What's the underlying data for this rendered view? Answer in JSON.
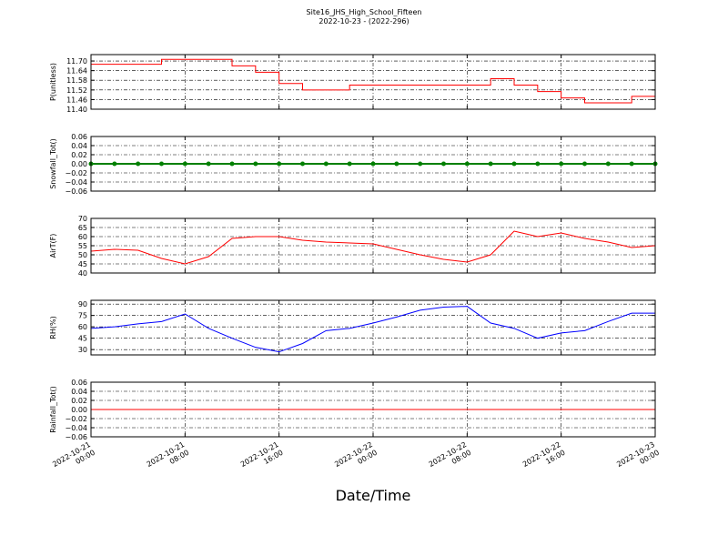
{
  "figure": {
    "title": "Site16_JHS_High_School_Fifteen",
    "subtitle": "2022-10-23 - (2022-296)",
    "xlabel": "Date/Time"
  },
  "chart_data": [
    {
      "type": "line",
      "ylabel": "P(unitless)",
      "drawstyle": "steps-post",
      "grid": true,
      "xlim": [
        "2022-10-21 00:00",
        "2022-10-23 00:00"
      ],
      "xticks": [
        "2022-10-21 00:00",
        "2022-10-21 08:00",
        "2022-10-21 16:00",
        "2022-10-22 00:00",
        "2022-10-22 08:00",
        "2022-10-22 16:00",
        "2022-10-23 00:00"
      ],
      "ylim": [
        11.4,
        11.74
      ],
      "yticks": [
        {
          "value": 11.4,
          "label": "11.40"
        },
        {
          "value": 11.46,
          "label": "11.46"
        },
        {
          "value": 11.52,
          "label": "11.52"
        },
        {
          "value": 11.58,
          "label": "11.58"
        },
        {
          "value": 11.64,
          "label": "11.64"
        },
        {
          "value": 11.7,
          "label": "11.70"
        }
      ],
      "x": [
        "2022-10-21 00:00",
        "2022-10-21 02:00",
        "2022-10-21 04:00",
        "2022-10-21 06:00",
        "2022-10-21 08:00",
        "2022-10-21 10:00",
        "2022-10-21 12:00",
        "2022-10-21 14:00",
        "2022-10-21 16:00",
        "2022-10-21 18:00",
        "2022-10-21 20:00",
        "2022-10-21 22:00",
        "2022-10-22 00:00",
        "2022-10-22 02:00",
        "2022-10-22 04:00",
        "2022-10-22 06:00",
        "2022-10-22 08:00",
        "2022-10-22 10:00",
        "2022-10-22 12:00",
        "2022-10-22 14:00",
        "2022-10-22 16:00",
        "2022-10-22 18:00",
        "2022-10-22 20:00",
        "2022-10-22 22:00",
        "2022-10-23 00:00"
      ],
      "series": [
        {
          "color": "#ff0000",
          "values": [
            11.68,
            11.68,
            11.68,
            11.71,
            11.71,
            11.71,
            11.67,
            11.63,
            11.56,
            11.52,
            11.52,
            11.55,
            11.55,
            11.55,
            11.55,
            11.55,
            11.55,
            11.59,
            11.55,
            11.51,
            11.47,
            11.44,
            11.44,
            11.48,
            11.48
          ]
        }
      ]
    },
    {
      "type": "line",
      "ylabel": "Snowfall_Tot()",
      "grid": true,
      "markers": true,
      "xlim": [
        "2022-10-21 00:00",
        "2022-10-23 00:00"
      ],
      "xticks": [
        "2022-10-21 00:00",
        "2022-10-21 08:00",
        "2022-10-21 16:00",
        "2022-10-22 00:00",
        "2022-10-22 08:00",
        "2022-10-22 16:00",
        "2022-10-23 00:00"
      ],
      "ylim": [
        -0.06,
        0.06
      ],
      "yticks": [
        {
          "value": -0.06,
          "label": "−0.06"
        },
        {
          "value": -0.04,
          "label": "−0.04"
        },
        {
          "value": -0.02,
          "label": "−0.02"
        },
        {
          "value": 0,
          "label": "0.00"
        },
        {
          "value": 0.02,
          "label": "0.02"
        },
        {
          "value": 0.04,
          "label": "0.04"
        },
        {
          "value": 0.06,
          "label": "0.06"
        }
      ],
      "x": [
        "2022-10-21 00:00",
        "2022-10-21 02:00",
        "2022-10-21 04:00",
        "2022-10-21 06:00",
        "2022-10-21 08:00",
        "2022-10-21 10:00",
        "2022-10-21 12:00",
        "2022-10-21 14:00",
        "2022-10-21 16:00",
        "2022-10-21 18:00",
        "2022-10-21 20:00",
        "2022-10-21 22:00",
        "2022-10-22 00:00",
        "2022-10-22 02:00",
        "2022-10-22 04:00",
        "2022-10-22 06:00",
        "2022-10-22 08:00",
        "2022-10-22 10:00",
        "2022-10-22 12:00",
        "2022-10-22 14:00",
        "2022-10-22 16:00",
        "2022-10-22 18:00",
        "2022-10-22 20:00",
        "2022-10-22 22:00",
        "2022-10-23 00:00"
      ],
      "series": [
        {
          "color": "#008000",
          "values": [
            0,
            0,
            0,
            0,
            0,
            0,
            0,
            0,
            0,
            0,
            0,
            0,
            0,
            0,
            0,
            0,
            0,
            0,
            0,
            0,
            0,
            0,
            0,
            0,
            0
          ]
        }
      ]
    },
    {
      "type": "line",
      "ylabel": "AirT(F)",
      "grid": true,
      "xlim": [
        "2022-10-21 00:00",
        "2022-10-23 00:00"
      ],
      "xticks": [
        "2022-10-21 00:00",
        "2022-10-21 08:00",
        "2022-10-21 16:00",
        "2022-10-22 00:00",
        "2022-10-22 08:00",
        "2022-10-22 16:00",
        "2022-10-23 00:00"
      ],
      "ylim": [
        40,
        70
      ],
      "yticks": [
        40,
        45,
        50,
        55,
        60,
        65,
        70
      ],
      "x": [
        "2022-10-21 00:00",
        "2022-10-21 02:00",
        "2022-10-21 04:00",
        "2022-10-21 06:00",
        "2022-10-21 08:00",
        "2022-10-21 10:00",
        "2022-10-21 12:00",
        "2022-10-21 14:00",
        "2022-10-21 16:00",
        "2022-10-21 18:00",
        "2022-10-21 20:00",
        "2022-10-21 22:00",
        "2022-10-22 00:00",
        "2022-10-22 02:00",
        "2022-10-22 04:00",
        "2022-10-22 06:00",
        "2022-10-22 08:00",
        "2022-10-22 10:00",
        "2022-10-22 12:00",
        "2022-10-22 14:00",
        "2022-10-22 16:00",
        "2022-10-22 18:00",
        "2022-10-22 20:00",
        "2022-10-22 22:00",
        "2022-10-23 00:00"
      ],
      "series": [
        {
          "color": "#ff0000",
          "values": [
            52,
            53,
            52.5,
            48,
            45,
            49,
            59,
            60,
            60,
            58,
            57,
            56.5,
            56,
            53,
            50,
            47.5,
            46,
            50,
            63,
            60,
            62,
            59,
            57,
            54,
            55
          ]
        }
      ]
    },
    {
      "type": "line",
      "ylabel": "RH(%)",
      "grid": true,
      "xlim": [
        "2022-10-21 00:00",
        "2022-10-23 00:00"
      ],
      "xticks": [
        "2022-10-21 00:00",
        "2022-10-21 08:00",
        "2022-10-21 16:00",
        "2022-10-22 00:00",
        "2022-10-22 08:00",
        "2022-10-22 16:00",
        "2022-10-23 00:00"
      ],
      "ylim": [
        23,
        95
      ],
      "yticks": [
        30,
        45,
        60,
        75,
        90
      ],
      "x": [
        "2022-10-21 00:00",
        "2022-10-21 02:00",
        "2022-10-21 04:00",
        "2022-10-21 06:00",
        "2022-10-21 08:00",
        "2022-10-21 10:00",
        "2022-10-21 12:00",
        "2022-10-21 14:00",
        "2022-10-21 16:00",
        "2022-10-21 18:00",
        "2022-10-21 20:00",
        "2022-10-21 22:00",
        "2022-10-22 00:00",
        "2022-10-22 02:00",
        "2022-10-22 04:00",
        "2022-10-22 06:00",
        "2022-10-22 08:00",
        "2022-10-22 10:00",
        "2022-10-22 12:00",
        "2022-10-22 14:00",
        "2022-10-22 16:00",
        "2022-10-22 18:00",
        "2022-10-22 20:00",
        "2022-10-22 22:00",
        "2022-10-23 00:00"
      ],
      "series": [
        {
          "color": "#0000ff",
          "values": [
            58,
            60,
            64,
            67,
            77,
            58,
            45,
            33,
            27,
            38,
            55,
            58,
            65,
            73,
            82,
            86,
            87,
            65,
            58,
            45,
            52,
            55,
            67,
            78,
            78
          ]
        }
      ]
    },
    {
      "type": "line",
      "ylabel": "Rainfall_Tot()",
      "grid": true,
      "xlim": [
        "2022-10-21 00:00",
        "2022-10-23 00:00"
      ],
      "xticks": [
        {
          "value": "2022-10-21 00:00",
          "label": [
            "2022-10-21",
            "00:00"
          ]
        },
        {
          "value": "2022-10-21 08:00",
          "label": [
            "2022-10-21",
            "08:00"
          ]
        },
        {
          "value": "2022-10-21 16:00",
          "label": [
            "2022-10-21",
            "16:00"
          ]
        },
        {
          "value": "2022-10-22 00:00",
          "label": [
            "2022-10-22",
            "00:00"
          ]
        },
        {
          "value": "2022-10-22 08:00",
          "label": [
            "2022-10-22",
            "08:00"
          ]
        },
        {
          "value": "2022-10-22 16:00",
          "label": [
            "2022-10-22",
            "16:00"
          ]
        },
        {
          "value": "2022-10-23 00:00",
          "label": [
            "2022-10-23",
            "00:00"
          ]
        }
      ],
      "ylim": [
        -0.06,
        0.06
      ],
      "yticks": [
        {
          "value": -0.06,
          "label": "−0.06"
        },
        {
          "value": -0.04,
          "label": "−0.04"
        },
        {
          "value": -0.02,
          "label": "−0.02"
        },
        {
          "value": 0,
          "label": "0.00"
        },
        {
          "value": 0.02,
          "label": "0.02"
        },
        {
          "value": 0.04,
          "label": "0.04"
        },
        {
          "value": 0.06,
          "label": "0.06"
        }
      ],
      "x": [
        "2022-10-21 00:00",
        "2022-10-21 02:00",
        "2022-10-21 04:00",
        "2022-10-21 06:00",
        "2022-10-21 08:00",
        "2022-10-21 10:00",
        "2022-10-21 12:00",
        "2022-10-21 14:00",
        "2022-10-21 16:00",
        "2022-10-21 18:00",
        "2022-10-21 20:00",
        "2022-10-21 22:00",
        "2022-10-22 00:00",
        "2022-10-22 02:00",
        "2022-10-22 04:00",
        "2022-10-22 06:00",
        "2022-10-22 08:00",
        "2022-10-22 10:00",
        "2022-10-22 12:00",
        "2022-10-22 14:00",
        "2022-10-22 16:00",
        "2022-10-22 18:00",
        "2022-10-22 20:00",
        "2022-10-22 22:00",
        "2022-10-23 00:00"
      ],
      "series": [
        {
          "color": "#ff0000",
          "values": [
            0,
            0,
            0,
            0,
            0,
            0,
            0,
            0,
            0,
            0,
            0,
            0,
            0,
            0,
            0,
            0,
            0,
            0,
            0,
            0,
            0,
            0,
            0,
            0,
            0
          ]
        }
      ]
    }
  ]
}
